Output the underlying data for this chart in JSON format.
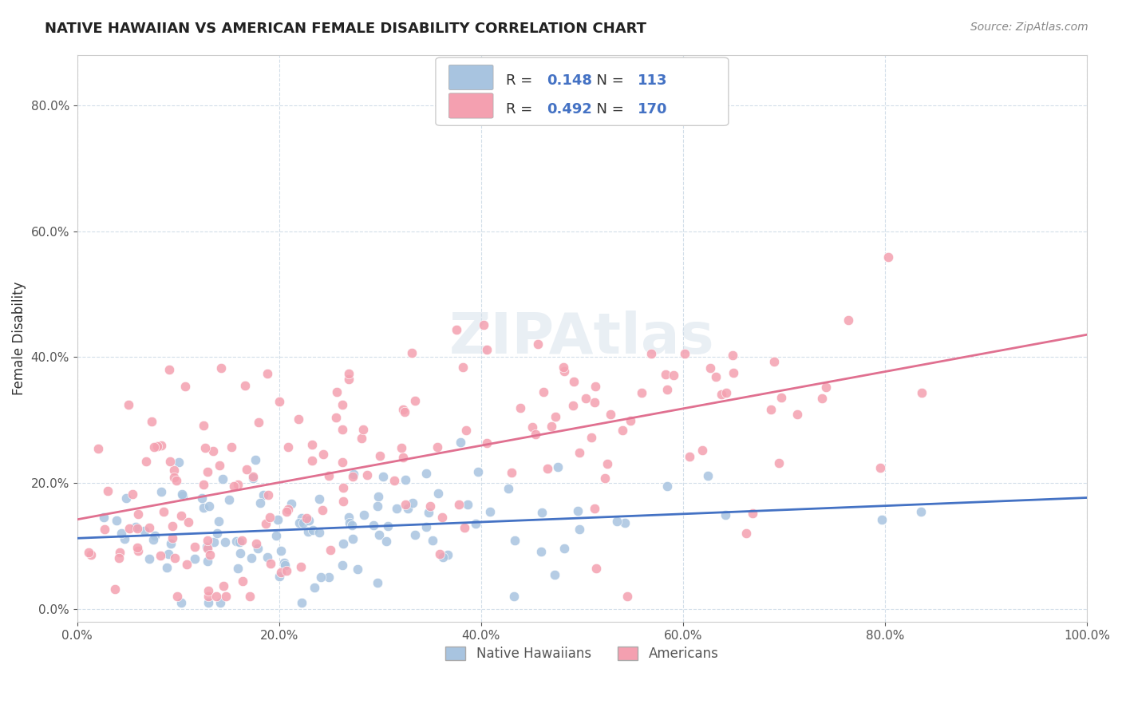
{
  "title": "NATIVE HAWAIIAN VS AMERICAN FEMALE DISABILITY CORRELATION CHART",
  "source": "Source: ZipAtlas.com",
  "xlabel": "",
  "ylabel": "Female Disability",
  "xlim": [
    0.0,
    1.0
  ],
  "ylim": [
    -0.02,
    0.88
  ],
  "nh_color": "#a8c4e0",
  "am_color": "#f4a0b0",
  "nh_line_color": "#4472c4",
  "am_line_color": "#e07090",
  "nh_R": 0.148,
  "nh_N": 113,
  "am_R": 0.492,
  "am_N": 170,
  "background_color": "#ffffff",
  "watermark": "ZIPAtlas",
  "nh_seed": 42,
  "am_seed": 99
}
